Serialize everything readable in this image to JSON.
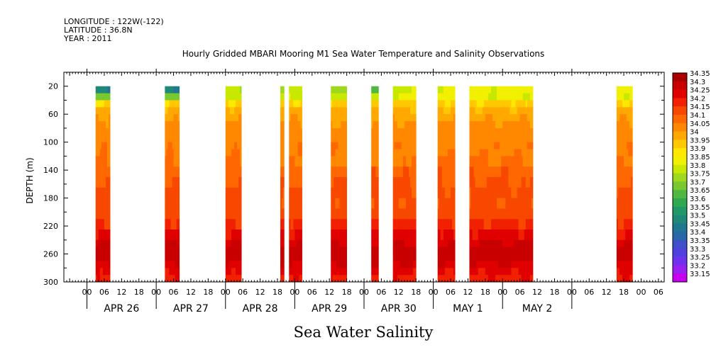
{
  "header": {
    "longitude": "LONGITUDE : 122W(-122)",
    "latitude": "LATITUDE : 36.8N",
    "year": "YEAR : 2011"
  },
  "chart_data": {
    "type": "heatmap",
    "title": "Hourly Gridded MBARI Mooring M1 Sea Water Temperature and Salinity Observations",
    "xlabel": "",
    "ylabel": "DEPTH (m)",
    "variable_label": "Sea Water Salinity",
    "y_range": [
      300,
      0
    ],
    "y_ticks": [
      20,
      60,
      100,
      140,
      180,
      220,
      260,
      300
    ],
    "x_range_hours": [
      -8,
      200
    ],
    "x_tick_hours": [
      0,
      6,
      12,
      18
    ],
    "day_labels": [
      "APR 26",
      "APR 27",
      "APR 28",
      "APR 29",
      "APR 30",
      "MAY  1",
      "MAY  2"
    ],
    "depth_levels": [
      20,
      30,
      40,
      50,
      60,
      70,
      80,
      90,
      100,
      110,
      120,
      135,
      150,
      165,
      180,
      195,
      210,
      225,
      240,
      250,
      260,
      270,
      280,
      290,
      300
    ],
    "base_profile": [
      33.72,
      33.86,
      33.96,
      34.01,
      34.04,
      34.06,
      34.07,
      34.08,
      34.09,
      34.09,
      34.1,
      34.14,
      34.15,
      34.16,
      34.16,
      34.17,
      34.21,
      34.26,
      34.3,
      34.32,
      34.32,
      34.3,
      34.26,
      34.24,
      34.23
    ],
    "segments": [
      {
        "start_hour": 3,
        "end_hour": 8,
        "surface": 33.5
      },
      {
        "start_hour": 27,
        "end_hour": 32,
        "surface": 33.5
      },
      {
        "start_hour": 48,
        "end_hour": 53.5,
        "surface": 33.8
      },
      {
        "start_hour": 67,
        "end_hour": 68.3,
        "surface": 33.78
      },
      {
        "start_hour": 70,
        "end_hour": 74.5,
        "surface": 33.8
      },
      {
        "start_hour": 84.5,
        "end_hour": 90,
        "surface": 33.78
      },
      {
        "start_hour": 98.5,
        "end_hour": 101,
        "surface": 33.7
      },
      {
        "start_hour": 106,
        "end_hour": 114,
        "surface": 33.85
      },
      {
        "start_hour": 121.5,
        "end_hour": 127.5,
        "surface": 33.85
      },
      {
        "start_hour": 132.5,
        "end_hour": 154.5,
        "surface": 33.86
      },
      {
        "start_hour": 183.5,
        "end_hour": 189,
        "surface": 33.86
      }
    ],
    "legend": {
      "levels": [
        "34.35",
        "34.3",
        "34.25",
        "34.2",
        "34.15",
        "34.1",
        "34.05",
        "34",
        "33.95",
        "33.9",
        "33.85",
        "33.8",
        "33.75",
        "33.7",
        "33.65",
        "33.6",
        "33.55",
        "33.5",
        "33.45",
        "33.4",
        "33.35",
        "33.3",
        "33.25",
        "33.2",
        "33.15"
      ],
      "colors": [
        "#a80000",
        "#c80000",
        "#e00000",
        "#f02000",
        "#f84800",
        "#ff6800",
        "#ff8800",
        "#ffa800",
        "#ffc800",
        "#ffe800",
        "#f0f000",
        "#c8e800",
        "#a0d820",
        "#78c830",
        "#50b840",
        "#30a850",
        "#209868",
        "#208878",
        "#207890",
        "#2868a8",
        "#4050c8",
        "#5040e0",
        "#7030f0",
        "#9820f0",
        "#c800f0"
      ]
    }
  }
}
